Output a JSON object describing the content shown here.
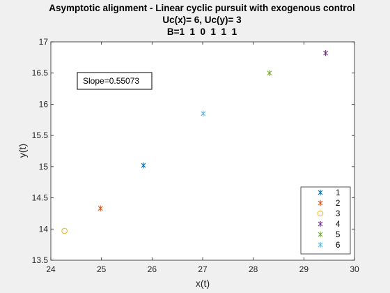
{
  "chart_data": {
    "type": "scatter",
    "title": [
      "Asymptotic alignment - Linear cyclic pursuit with exogenous control",
      "Uc(x)= 6, Uc(y)= 3",
      "B=1  1  0  1  1  1"
    ],
    "xlabel": "x(t)",
    "ylabel": "y(t)",
    "xlim": [
      24,
      30
    ],
    "ylim": [
      13.5,
      17
    ],
    "xticks": [
      "24",
      "25",
      "26",
      "27",
      "28",
      "29",
      "30"
    ],
    "yticks": [
      "13.5",
      "14",
      "14.5",
      "15",
      "15.5",
      "16",
      "16.5",
      "17"
    ],
    "grid": false,
    "legend_position": "bottom-right",
    "annotation": "Slope=0.55073",
    "series": [
      {
        "name": "1",
        "marker": "asterisk",
        "color": "#0072BD",
        "x": [
          25.83
        ],
        "y": [
          15.02
        ]
      },
      {
        "name": "2",
        "marker": "asterisk",
        "color": "#D95319",
        "x": [
          24.98
        ],
        "y": [
          14.33
        ]
      },
      {
        "name": "3",
        "marker": "circle",
        "color": "#EDB120",
        "x": [
          24.27
        ],
        "y": [
          13.97
        ]
      },
      {
        "name": "4",
        "marker": "asterisk",
        "color": "#7E2F8E",
        "x": [
          29.43
        ],
        "y": [
          16.82
        ]
      },
      {
        "name": "5",
        "marker": "asterisk",
        "color": "#77AC30",
        "x": [
          28.32
        ],
        "y": [
          16.5
        ]
      },
      {
        "name": "6",
        "marker": "asterisk",
        "color": "#4DBEEE",
        "x": [
          27.01
        ],
        "y": [
          15.85
        ]
      }
    ]
  }
}
